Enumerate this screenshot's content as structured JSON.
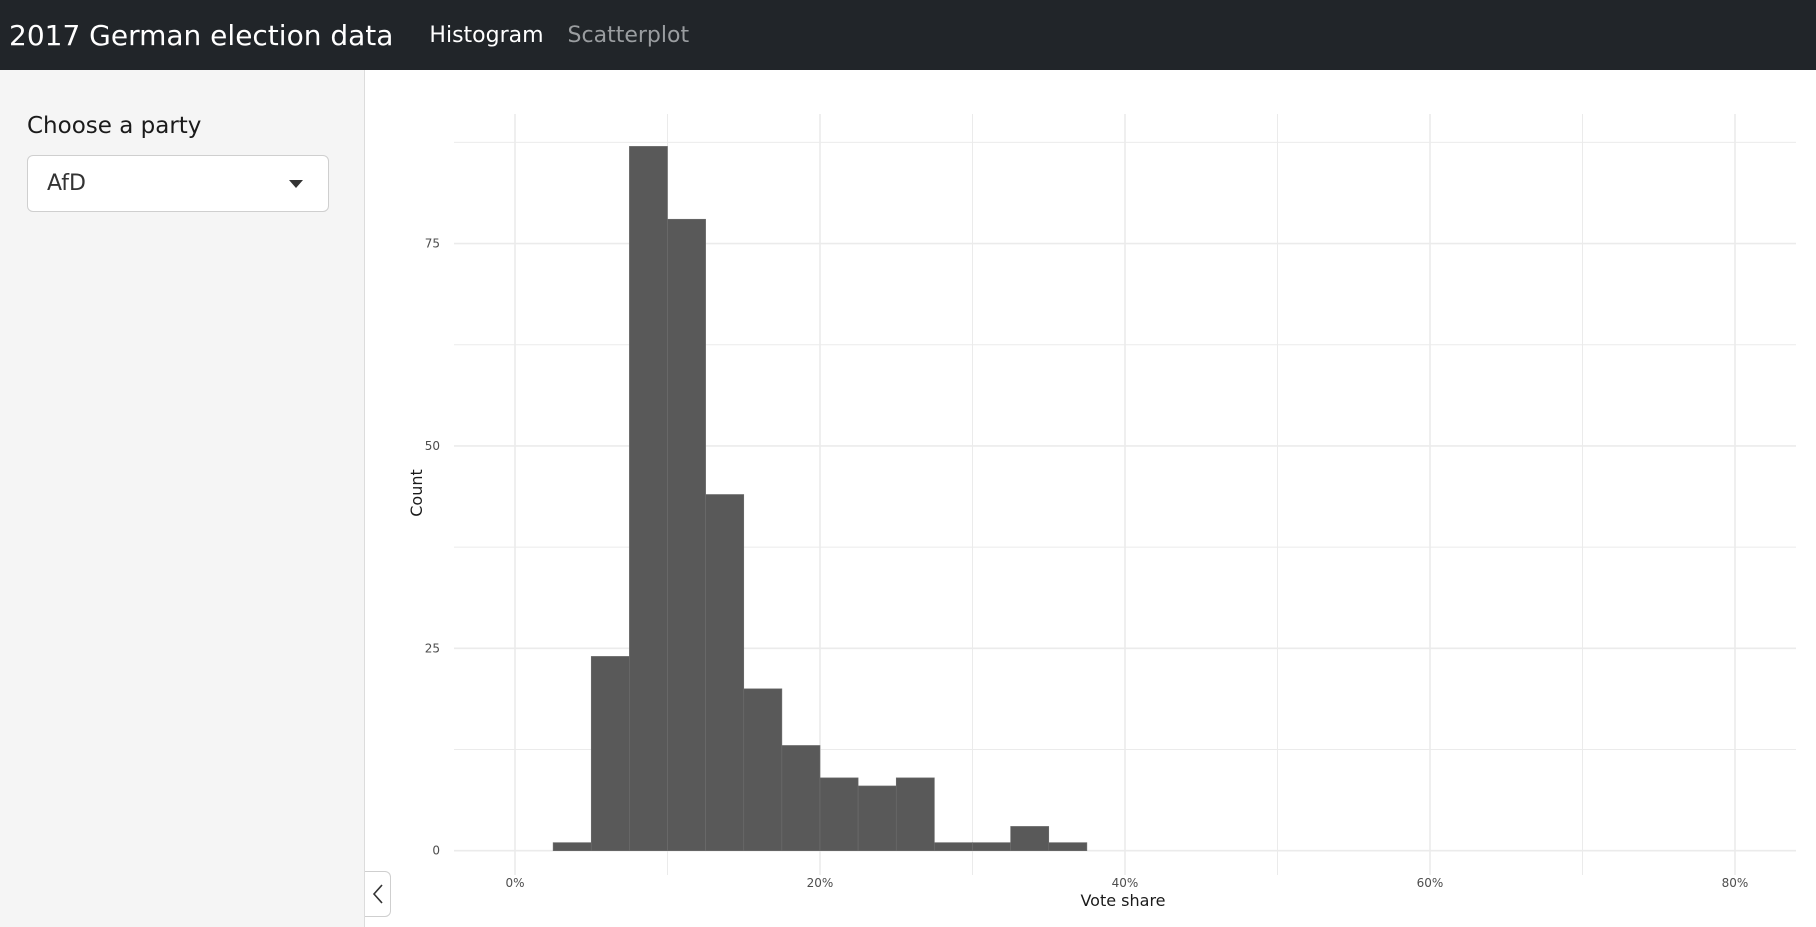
{
  "app": {
    "title": "2017 German election data",
    "tabs": [
      {
        "label": "Histogram",
        "active": true
      },
      {
        "label": "Scatterplot",
        "active": false
      }
    ]
  },
  "sidebar": {
    "party_label": "Choose a party",
    "party_selected": "AfD",
    "collapse_icon": "chevron-left-icon"
  },
  "colors": {
    "navbar_bg": "#212529",
    "bar_fill": "#595959",
    "grid": "#ebebeb"
  },
  "chart_data": {
    "type": "bar",
    "xlabel": "Vote share",
    "ylabel": "Count",
    "xlim": [
      -0.04,
      0.84
    ],
    "ylim": [
      -3,
      91
    ],
    "x_ticks": [
      0,
      0.2,
      0.4,
      0.6,
      0.8
    ],
    "x_tick_labels": [
      "0%",
      "20%",
      "40%",
      "60%",
      "80%"
    ],
    "y_ticks": [
      0,
      25,
      50,
      75
    ],
    "y_tick_labels": [
      "0",
      "25",
      "50",
      "75"
    ],
    "grid": true,
    "bins": [
      {
        "x0": 0.025,
        "x1": 0.05,
        "count": 1
      },
      {
        "x0": 0.05,
        "x1": 0.075,
        "count": 24
      },
      {
        "x0": 0.075,
        "x1": 0.1,
        "count": 87
      },
      {
        "x0": 0.1,
        "x1": 0.125,
        "count": 78
      },
      {
        "x0": 0.125,
        "x1": 0.15,
        "count": 44
      },
      {
        "x0": 0.15,
        "x1": 0.175,
        "count": 20
      },
      {
        "x0": 0.175,
        "x1": 0.2,
        "count": 13
      },
      {
        "x0": 0.2,
        "x1": 0.225,
        "count": 9
      },
      {
        "x0": 0.225,
        "x1": 0.25,
        "count": 8
      },
      {
        "x0": 0.25,
        "x1": 0.275,
        "count": 9
      },
      {
        "x0": 0.275,
        "x1": 0.3,
        "count": 1
      },
      {
        "x0": 0.3,
        "x1": 0.325,
        "count": 1
      },
      {
        "x0": 0.325,
        "x1": 0.35,
        "count": 3
      },
      {
        "x0": 0.35,
        "x1": 0.375,
        "count": 1
      }
    ]
  }
}
